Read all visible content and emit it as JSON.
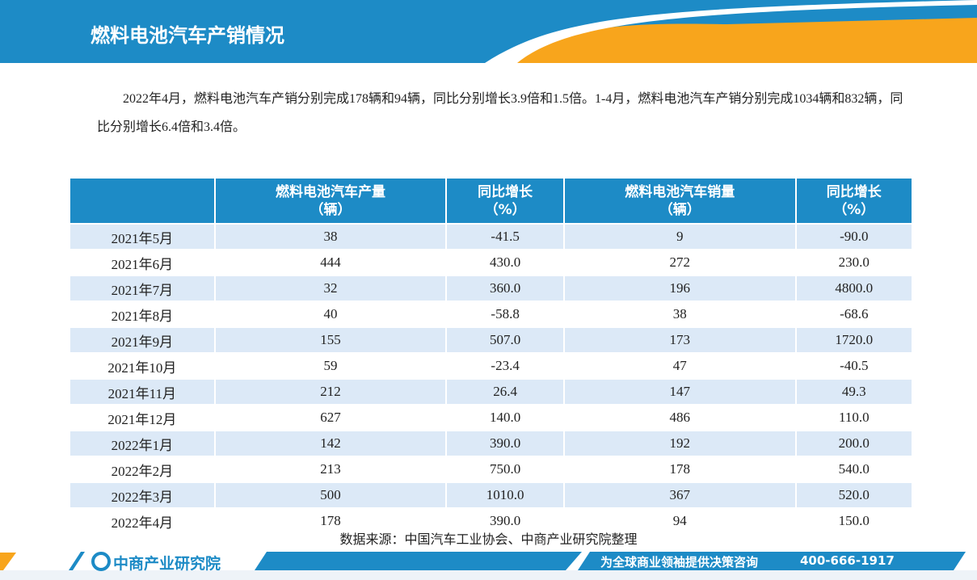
{
  "header": {
    "title": "燃料电池汽车产销情况"
  },
  "intro": {
    "paragraph": "2022年4月，燃料电池汽车产销分别完成178辆和94辆，同比分别增长3.9倍和1.5倍。1-4月，燃料电池汽车产销分别完成1034辆和832辆，同比分别增长6.4倍和3.4倍。"
  },
  "table": {
    "columns": [
      {
        "name": "燃料电池汽车产量",
        "unit": "（辆）"
      },
      {
        "name": "同比增长",
        "unit": "（%）"
      },
      {
        "name": "燃料电池汽车销量",
        "unit": "（辆）"
      },
      {
        "name": "同比增长",
        "unit": "（%）"
      }
    ],
    "rows": [
      [
        "2021年5月",
        "38",
        "-41.5",
        "9",
        "-90.0"
      ],
      [
        "2021年6月",
        "444",
        "430.0",
        "272",
        "230.0"
      ],
      [
        "2021年7月",
        "32",
        "360.0",
        "196",
        "4800.0"
      ],
      [
        "2021年8月",
        "40",
        "-58.8",
        "38",
        "-68.6"
      ],
      [
        "2021年9月",
        "155",
        "507.0",
        "173",
        "1720.0"
      ],
      [
        "2021年10月",
        "59",
        "-23.4",
        "47",
        "-40.5"
      ],
      [
        "2021年11月",
        "212",
        "26.4",
        "147",
        "49.3"
      ],
      [
        "2021年12月",
        "627",
        "140.0",
        "486",
        "110.0"
      ],
      [
        "2022年1月",
        "142",
        "390.0",
        "192",
        "200.0"
      ],
      [
        "2022年2月",
        "213",
        "750.0",
        "178",
        "540.0"
      ],
      [
        "2022年3月",
        "500",
        "1010.0",
        "367",
        "520.0"
      ],
      [
        "2022年4月",
        "178",
        "390.0",
        "94",
        "150.0"
      ]
    ]
  },
  "source": "数据来源：中国汽车工业协会、中商产业研究院整理",
  "footer": {
    "logo": "中商产业研究院",
    "slogan": "为全球商业领袖提供决策咨询",
    "phone": "400-666-1917"
  }
}
